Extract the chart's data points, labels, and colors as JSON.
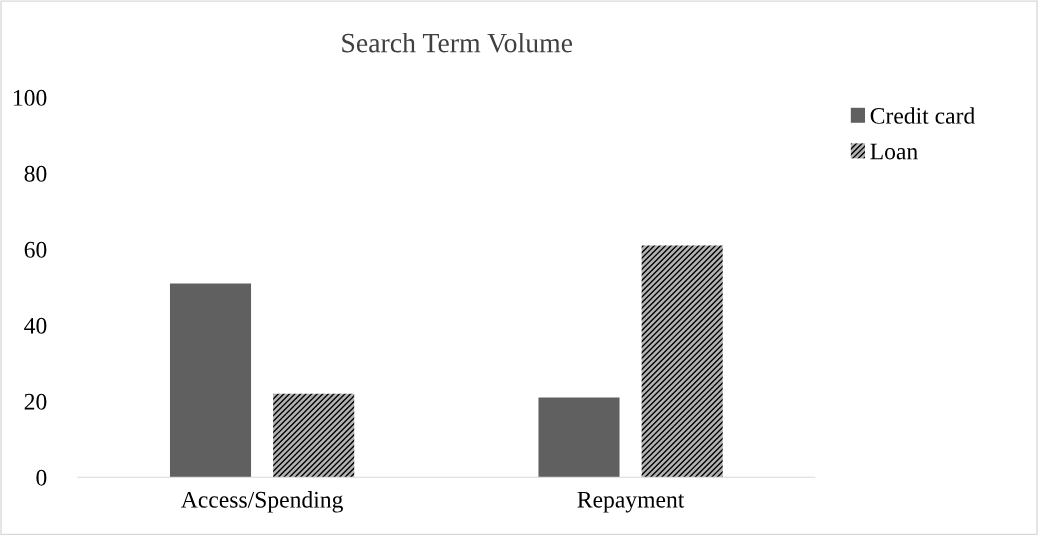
{
  "chart_data": {
    "type": "bar",
    "title": "Search Term Volume",
    "categories": [
      "Access/Spending",
      "Repayment"
    ],
    "series": [
      {
        "name": "Credit card",
        "color": "#606060",
        "values": [
          51,
          21
        ]
      },
      {
        "name": "Loan",
        "color": "#b3b3b3",
        "values": [
          22,
          61
        ]
      }
    ],
    "ylim": [
      0,
      100
    ],
    "yticks": [
      0,
      20,
      40,
      60,
      80,
      100
    ],
    "grid": false,
    "legend": "top right"
  }
}
